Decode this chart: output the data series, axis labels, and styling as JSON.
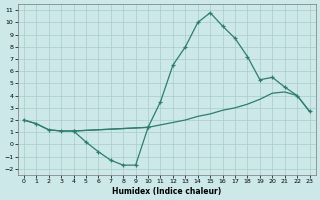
{
  "xlabel": "Humidex (Indice chaleur)",
  "line_color": "#2e7d6e",
  "bg_color": "#cce8e8",
  "grid_color": "#aacccc",
  "ylim": [
    -2.5,
    11.5
  ],
  "xlim": [
    -0.5,
    23.5
  ],
  "yticks": [
    -2,
    -1,
    0,
    1,
    2,
    3,
    4,
    5,
    6,
    7,
    8,
    9,
    10,
    11
  ],
  "xticks": [
    0,
    1,
    2,
    3,
    4,
    5,
    6,
    7,
    8,
    9,
    10,
    11,
    12,
    13,
    14,
    15,
    16,
    17,
    18,
    19,
    20,
    21,
    22,
    23
  ],
  "peak_x": [
    0,
    1,
    2,
    3,
    4,
    10,
    11,
    12,
    13,
    14,
    15,
    16,
    17,
    18,
    19,
    20,
    21,
    22,
    23
  ],
  "peak_y": [
    2.0,
    1.7,
    1.2,
    1.1,
    1.1,
    1.4,
    3.5,
    6.5,
    8.0,
    10.0,
    10.8,
    9.7,
    8.7,
    7.2,
    5.3,
    5.5,
    4.7,
    4.0,
    2.7
  ],
  "dip_x": [
    4,
    5,
    6,
    7,
    8,
    9,
    10
  ],
  "dip_y": [
    1.1,
    0.2,
    -0.6,
    -1.3,
    -1.7,
    -1.7,
    1.4
  ],
  "flat_x": [
    0,
    1,
    2,
    3,
    4,
    10,
    11,
    12,
    13,
    14,
    15,
    16,
    17,
    18,
    19,
    20,
    21,
    22,
    23
  ],
  "flat_y": [
    2.0,
    1.7,
    1.2,
    1.1,
    1.1,
    1.4,
    1.6,
    1.8,
    2.0,
    2.3,
    2.5,
    2.8,
    3.0,
    3.3,
    3.7,
    4.2,
    4.3,
    4.0,
    2.7
  ]
}
